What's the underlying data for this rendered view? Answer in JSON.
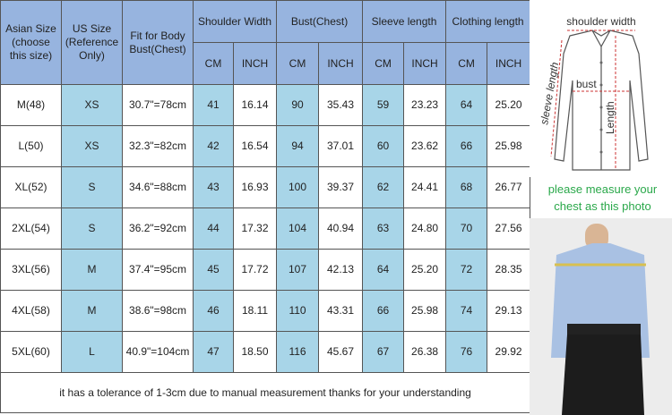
{
  "table": {
    "header_top": [
      "Asian Size\n(choose\nthis size)",
      "US Size\n(Reference\nOnly)",
      "Fit for Body\nBust(Chest)",
      "Shoulder Width",
      "Bust(Chest)",
      "Sleeve length",
      "Clothing length"
    ],
    "header_units": [
      "CM",
      "INCH",
      "CM",
      "INCH",
      "CM",
      "INCH",
      "CM",
      "INCH"
    ],
    "rows": [
      [
        "M(48)",
        "XS",
        "30.7\"=78cm",
        "41",
        "16.14",
        "90",
        "35.43",
        "59",
        "23.23",
        "64",
        "25.20"
      ],
      [
        "L(50)",
        "XS",
        "32.3\"=82cm",
        "42",
        "16.54",
        "94",
        "37.01",
        "60",
        "23.62",
        "66",
        "25.98"
      ],
      [
        "XL(52)",
        "S",
        "34.6\"=88cm",
        "43",
        "16.93",
        "100",
        "39.37",
        "62",
        "24.41",
        "68",
        "26.77"
      ],
      [
        "2XL(54)",
        "S",
        "36.2\"=92cm",
        "44",
        "17.32",
        "104",
        "40.94",
        "63",
        "24.80",
        "70",
        "27.56"
      ],
      [
        "3XL(56)",
        "M",
        "37.4\"=95cm",
        "45",
        "17.72",
        "107",
        "42.13",
        "64",
        "25.20",
        "72",
        "28.35"
      ],
      [
        "4XL(58)",
        "M",
        "38.6\"=98cm",
        "46",
        "18.11",
        "110",
        "43.31",
        "66",
        "25.98",
        "74",
        "29.13"
      ],
      [
        "5XL(60)",
        "L",
        "40.9\"=104cm",
        "47",
        "18.50",
        "116",
        "45.67",
        "67",
        "26.38",
        "76",
        "29.92"
      ]
    ],
    "note": "it has a tolerance of 1-3cm due to manual measurement thanks for your understanding"
  },
  "side": {
    "shoulder_width": "shoulder width",
    "bust": "bust",
    "sleeve_length": "sleeve length",
    "length": "Length",
    "instruction": "please measure your chest as this photo"
  }
}
